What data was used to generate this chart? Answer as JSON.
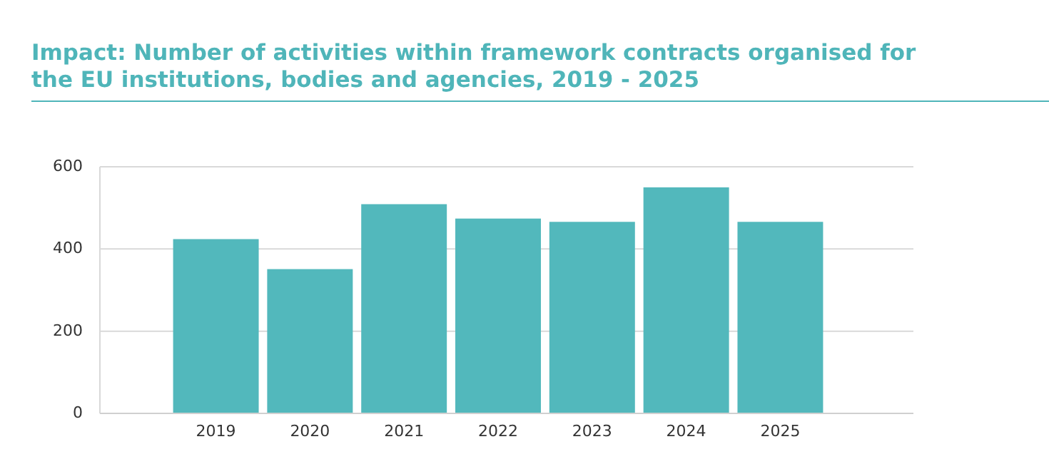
{
  "chart_data": {
    "type": "bar",
    "title": "Impact: Number of activities within framework contracts organised for the EU institutions, bodies and agencies, 2019 - 2025",
    "categories": [
      "2019",
      "2020",
      "2021",
      "2022",
      "2023",
      "2024",
      "2025"
    ],
    "values": [
      424,
      351,
      509,
      474,
      466,
      550,
      466
    ],
    "color": "#52b8bc",
    "ylim": [
      0,
      600
    ],
    "yticks": [
      0,
      200,
      400,
      600
    ],
    "grid": "y"
  }
}
